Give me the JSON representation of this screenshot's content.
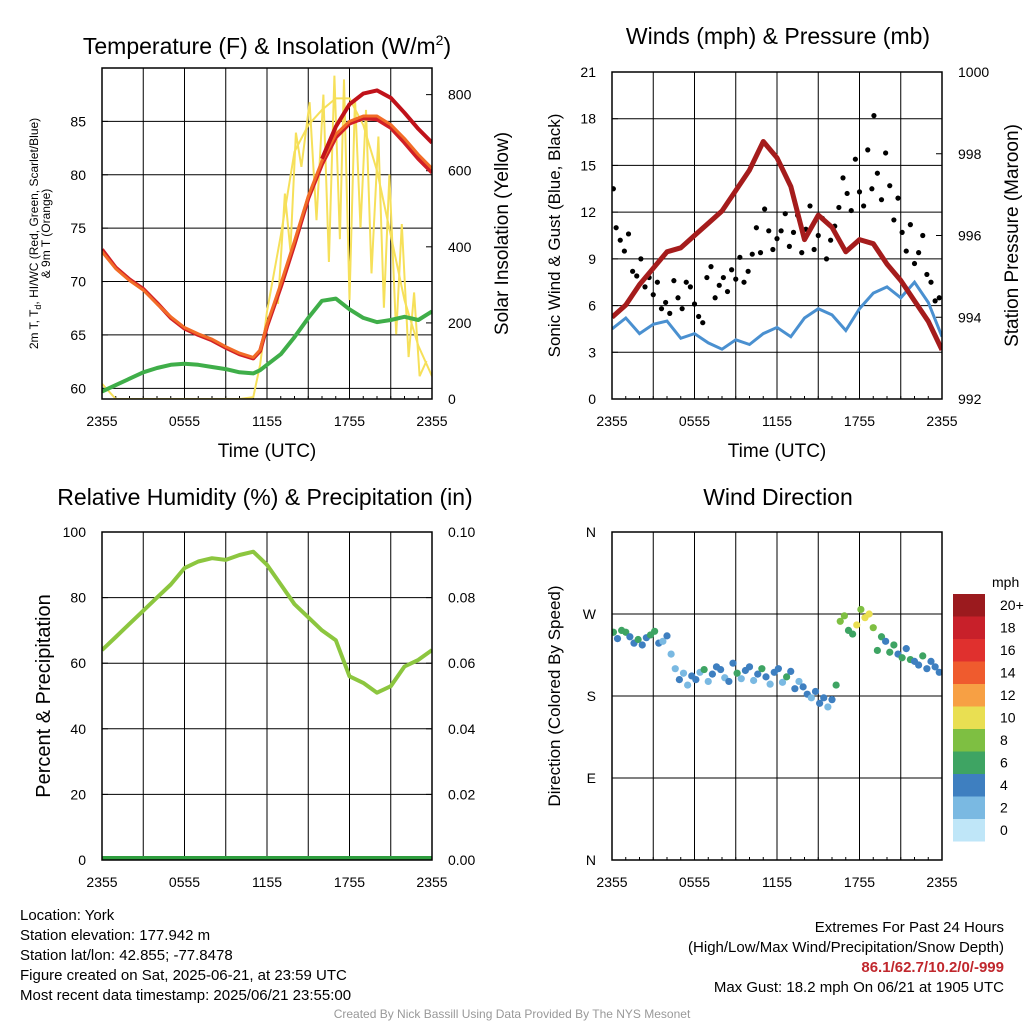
{
  "colors": {
    "t2m": "#d11f26",
    "td": "#3fae49",
    "hi": "#c0121a",
    "t9m": "#f26c27",
    "solar": "#f6e05a",
    "rh": "#8cc63f",
    "precip": "#2e9e3e",
    "gust": "#000000",
    "wind": "#4a90d0",
    "pressure": "#a51c1c",
    "ink": "#000000"
  },
  "chart_data": [
    {
      "id": "temperature",
      "type": "line",
      "title": "Temperature (F) & Insolation (W/m",
      "title_sup": "2",
      "title_close": ")",
      "xlabel": "Time (UTC)",
      "ylabel_lines": [
        "2m T, T",
        "d",
        ", HI/WC (Red, Green, Scarlet/Blue)",
        "& 9m T (Orange)"
      ],
      "y2label": "Solar Insolation (Yellow)",
      "x_ticks": [
        "2355",
        "0555",
        "1155",
        "1755",
        "2355"
      ],
      "ylim": [
        59,
        90
      ],
      "y_ticks": [
        60,
        65,
        70,
        75,
        80,
        85
      ],
      "y2lim": [
        0,
        870
      ],
      "y2_ticks": [
        0,
        200,
        400,
        600,
        800
      ],
      "x_hours": [
        0,
        1,
        2,
        3,
        4,
        5,
        6,
        7,
        8,
        9,
        10,
        11,
        11.5,
        12,
        13,
        14,
        15,
        16,
        17,
        18,
        19,
        20,
        21,
        22,
        23,
        24
      ],
      "series": [
        {
          "key": "t2m",
          "color_key": "t2m",
          "width": 4,
          "values": [
            73,
            71.3,
            70.2,
            69.3,
            68,
            66.6,
            65.6,
            65,
            64.5,
            63.8,
            63.2,
            62.8,
            63.5,
            65.8,
            69.5,
            73.5,
            77.8,
            81,
            83.5,
            84.8,
            85.3,
            85.2,
            84.4,
            83,
            81.5,
            80.2
          ]
        },
        {
          "key": "t9m",
          "color_key": "t9m",
          "width": 3,
          "values": [
            72.8,
            71.2,
            70.1,
            69.2,
            67.9,
            66.7,
            65.7,
            65.1,
            64.6,
            63.9,
            63.3,
            62.9,
            63.6,
            66.0,
            69.8,
            73.8,
            78.0,
            81.3,
            83.8,
            85.0,
            85.5,
            85.5,
            84.7,
            83.4,
            81.9,
            80.6
          ]
        },
        {
          "key": "hi",
          "color_key": "hi",
          "width": 4,
          "values": [
            null,
            null,
            null,
            null,
            null,
            null,
            null,
            null,
            null,
            null,
            null,
            null,
            null,
            null,
            null,
            null,
            null,
            81.5,
            84.5,
            86.6,
            87.6,
            87.9,
            87.2,
            85.8,
            84.3,
            83
          ]
        },
        {
          "key": "td",
          "color_key": "td",
          "width": 4,
          "values": [
            59.7,
            60.3,
            60.9,
            61.5,
            61.9,
            62.2,
            62.3,
            62.2,
            62.0,
            61.8,
            61.5,
            61.4,
            61.7,
            62.2,
            63.2,
            64.8,
            66.6,
            68.2,
            68.4,
            67.4,
            66.6,
            66.2,
            66.4,
            66.7,
            66.4,
            67.2
          ]
        },
        {
          "key": "solar",
          "axis": "y2",
          "color_key": "solar",
          "width": 2,
          "values": [
            40,
            0,
            0,
            0,
            0,
            0,
            0,
            0,
            0,
            0,
            0,
            5,
            90,
            230,
            430,
            650,
            720,
            760,
            790,
            790,
            720,
            600,
            430,
            260,
            140,
            60
          ]
        }
      ],
      "solar_extra": {
        "x": [
          12.8,
          13.3,
          13.7,
          14.1,
          14.5,
          15.1,
          15.6,
          16.1,
          16.5,
          16.9,
          17.3,
          17.6,
          18,
          18.4,
          18.8,
          19.2,
          19.6,
          20.1,
          20.5,
          20.9,
          21.4,
          21.8,
          22.3,
          22.7,
          23.1,
          23.6
        ],
        "v": [
          250,
          540,
          390,
          700,
          610,
          780,
          470,
          800,
          360,
          850,
          420,
          840,
          260,
          790,
          450,
          760,
          330,
          690,
          240,
          590,
          170,
          460,
          110,
          280,
          60,
          100
        ]
      }
    },
    {
      "id": "winds",
      "type": "line",
      "title": "Winds (mph) & Pressure (mb)",
      "xlabel": "Time (UTC)",
      "ylabel": "Sonic Wind & Gust (Blue, Black)",
      "y2label": "Station Pressure (Maroon)",
      "x_ticks": [
        "2355",
        "0555",
        "1155",
        "1755",
        "2355"
      ],
      "ylim": [
        0,
        21
      ],
      "y_ticks": [
        0,
        3,
        6,
        9,
        12,
        15,
        18,
        21
      ],
      "y2lim": [
        992,
        1000
      ],
      "y2_ticks": [
        992,
        994,
        996,
        998,
        1000
      ],
      "x_hours": [
        0,
        1,
        2,
        3,
        4,
        5,
        6,
        7,
        8,
        9,
        10,
        11,
        12,
        13,
        14,
        15,
        16,
        17,
        18,
        19,
        20,
        21,
        22,
        23,
        24
      ],
      "series": [
        {
          "key": "pressure",
          "axis": "y2",
          "color_key": "pressure",
          "width": 5,
          "values": [
            994.0,
            994.3,
            994.8,
            995.2,
            995.6,
            995.7,
            996.0,
            996.3,
            996.6,
            997.1,
            997.6,
            998.3,
            997.9,
            997.2,
            995.9,
            996.5,
            996.2,
            995.6,
            995.9,
            995.8,
            995.3,
            994.9,
            994.4,
            993.9,
            993.2
          ]
        },
        {
          "key": "wind",
          "color_key": "wind",
          "width": 3,
          "values": [
            4.5,
            5.2,
            4.2,
            4.8,
            5.0,
            3.9,
            4.2,
            3.6,
            3.2,
            3.8,
            3.5,
            4.2,
            4.6,
            4.0,
            5.2,
            5.8,
            5.4,
            4.4,
            5.8,
            6.8,
            7.2,
            6.5,
            7.5,
            6.2,
            4.0
          ]
        }
      ],
      "gust_points": {
        "x": [
          0.1,
          0.3,
          0.6,
          0.9,
          1.2,
          1.5,
          1.8,
          2.1,
          2.4,
          2.7,
          3.0,
          3.3,
          3.6,
          3.9,
          4.2,
          4.5,
          4.8,
          5.1,
          5.4,
          5.7,
          6.0,
          6.3,
          6.6,
          6.9,
          7.2,
          7.5,
          7.8,
          8.1,
          8.4,
          8.7,
          9.0,
          9.3,
          9.6,
          9.9,
          10.2,
          10.5,
          10.8,
          11.1,
          11.4,
          11.7,
          12.0,
          12.3,
          12.6,
          12.9,
          13.2,
          13.5,
          13.8,
          14.1,
          14.4,
          14.7,
          15.0,
          15.3,
          15.6,
          15.9,
          16.2,
          16.5,
          16.8,
          17.1,
          17.4,
          17.7,
          18.0,
          18.3,
          18.6,
          18.9,
          19.05,
          19.3,
          19.6,
          19.9,
          20.2,
          20.5,
          20.8,
          21.1,
          21.4,
          21.7,
          22.0,
          22.3,
          22.6,
          22.9,
          23.2,
          23.5,
          23.8
        ],
        "v": [
          13.5,
          11.0,
          10.2,
          9.5,
          10.6,
          8.2,
          7.9,
          9.0,
          7.2,
          7.8,
          6.7,
          7.5,
          5.8,
          6.2,
          5.5,
          7.6,
          6.5,
          5.8,
          7.5,
          7.2,
          6.1,
          5.3,
          4.9,
          7.8,
          8.5,
          6.5,
          7.3,
          7.8,
          6.9,
          8.3,
          7.7,
          9.1,
          7.5,
          8.2,
          9.3,
          11.0,
          9.4,
          12.2,
          10.8,
          9.6,
          10.3,
          10.8,
          11.9,
          9.8,
          10.7,
          11.8,
          9.4,
          10.9,
          12.4,
          9.6,
          10.5,
          11.6,
          9.0,
          10.2,
          11.1,
          12.3,
          14.2,
          13.2,
          12.1,
          15.4,
          13.3,
          12.4,
          16.0,
          13.5,
          18.2,
          14.5,
          12.8,
          15.8,
          13.7,
          11.5,
          12.9,
          10.7,
          9.5,
          11.2,
          8.7,
          9.4,
          10.5,
          8.0,
          7.5,
          6.3,
          6.5
        ]
      }
    },
    {
      "id": "humidity",
      "type": "line",
      "title": "Relative Humidity (%) & Precipitation (in)",
      "ylabel": "Percent & Precipitation",
      "x_ticks": [
        "2355",
        "0555",
        "1155",
        "1755",
        "2355"
      ],
      "ylim": [
        0,
        100
      ],
      "y_ticks": [
        0,
        20,
        40,
        60,
        80,
        100
      ],
      "y2lim": [
        0,
        0.1
      ],
      "y2_ticks": [
        "0.00",
        "0.02",
        "0.04",
        "0.06",
        "0.08",
        "0.10"
      ],
      "x_hours": [
        0,
        1,
        2,
        3,
        4,
        5,
        6,
        7,
        8,
        9,
        10,
        11,
        12,
        13,
        14,
        15,
        16,
        17,
        18,
        19,
        20,
        21,
        22,
        23,
        24
      ],
      "series": [
        {
          "key": "rh",
          "color_key": "rh",
          "width": 4,
          "values": [
            64,
            68,
            72,
            76,
            80,
            84,
            89,
            91,
            92,
            91.5,
            93,
            94,
            90,
            84,
            78,
            74,
            70,
            67,
            56,
            54,
            51,
            53,
            59,
            61,
            64
          ]
        },
        {
          "key": "precip",
          "axis": "y2",
          "color_key": "precip",
          "width": 8,
          "values": [
            0,
            0,
            0,
            0,
            0,
            0,
            0,
            0,
            0,
            0,
            0,
            0,
            0,
            0,
            0,
            0,
            0,
            0,
            0,
            0,
            0,
            0,
            0,
            0,
            0
          ]
        }
      ]
    },
    {
      "id": "wind_direction",
      "type": "scatter",
      "title": "Wind Direction",
      "ylabel": "Direction (Colored By Speed)",
      "x_ticks": [
        "2355",
        "0555",
        "1155",
        "1755",
        "2355"
      ],
      "ylim": [
        0,
        360
      ],
      "y_ticks": [
        "N",
        "E",
        "S",
        "W",
        "N"
      ],
      "y_tick_values": [
        0,
        90,
        180,
        270,
        360
      ],
      "colorbar": {
        "title": "mph",
        "labels": [
          "20+",
          "18",
          "16",
          "14",
          "12",
          "10",
          "8",
          "6",
          "4",
          "2",
          "0"
        ],
        "colors": [
          "#9b1a1e",
          "#c8202a",
          "#e0302e",
          "#ef5b2e",
          "#f7a044",
          "#e9df52",
          "#7ebf42",
          "#3ea463",
          "#3e7fc0",
          "#7ab9e2",
          "#bfe6f8"
        ]
      },
      "points": {
        "x": [
          0.1,
          0.4,
          0.7,
          1.0,
          1.3,
          1.6,
          1.9,
          2.2,
          2.5,
          2.8,
          3.1,
          3.4,
          3.7,
          4.0,
          4.3,
          4.6,
          4.9,
          5.2,
          5.5,
          5.8,
          6.1,
          6.4,
          6.7,
          7.0,
          7.3,
          7.6,
          7.9,
          8.2,
          8.5,
          8.8,
          9.1,
          9.4,
          9.7,
          10.0,
          10.3,
          10.6,
          10.9,
          11.2,
          11.5,
          11.8,
          12.1,
          12.4,
          12.7,
          13.0,
          13.3,
          13.6,
          13.9,
          14.2,
          14.5,
          14.8,
          15.1,
          15.4,
          15.7,
          16.0,
          16.3,
          16.6,
          16.9,
          17.2,
          17.5,
          17.8,
          18.1,
          18.4,
          18.7,
          19.0,
          19.3,
          19.6,
          19.9,
          20.2,
          20.5,
          20.8,
          21.1,
          21.4,
          21.7,
          22.0,
          22.3,
          22.6,
          22.9,
          23.2,
          23.5,
          23.8
        ],
        "dir": [
          250,
          243,
          252,
          250,
          245,
          238,
          242,
          236,
          244,
          247,
          251,
          238,
          240,
          246,
          226,
          210,
          198,
          205,
          192,
          202,
          198,
          206,
          209,
          196,
          204,
          212,
          209,
          200,
          196,
          216,
          205,
          199,
          208,
          212,
          197,
          204,
          210,
          201,
          193,
          206,
          210,
          195,
          201,
          207,
          188,
          196,
          190,
          182,
          178,
          185,
          172,
          178,
          168,
          176,
          192,
          262,
          268,
          252,
          248,
          258,
          275,
          266,
          270,
          255,
          230,
          245,
          240,
          228,
          236,
          226,
          222,
          232,
          220,
          218,
          214,
          224,
          210,
          218,
          212,
          206
        ],
        "spd": [
          6,
          5,
          7,
          6,
          5,
          4,
          6,
          4,
          5,
          6,
          7,
          4,
          3,
          5,
          3,
          3,
          4,
          3,
          2,
          4,
          5,
          3,
          6,
          3,
          4,
          5,
          4,
          3,
          5,
          4,
          6,
          3,
          4,
          5,
          3,
          4,
          6,
          4,
          3,
          5,
          4,
          3,
          6,
          4,
          5,
          3,
          4,
          5,
          3,
          4,
          4,
          5,
          3,
          4,
          6,
          8,
          9,
          7,
          6,
          10,
          9,
          11,
          10,
          8,
          6,
          7,
          5,
          6,
          7,
          5,
          6,
          4,
          6,
          5,
          4,
          6,
          5,
          4,
          5,
          4
        ]
      }
    }
  ],
  "info": {
    "location": "Location: York",
    "elevation": "Station elevation: 177.942 m",
    "latlon": "Station lat/lon: 42.855; -77.8478",
    "created": "Figure created on Sat, 2025-06-21, at 23:59 UTC",
    "recent": "Most recent data timestamp: 2025/06/21 23:55:00"
  },
  "extremes": {
    "title": "Extremes For Past 24 Hours",
    "subtitle": "(High/Low/Max Wind/Precipitation/Snow Depth)",
    "values": "86.1/62.7/10.2/0/-999",
    "max_gust": "Max Gust: 18.2 mph On 06/21 at 1905 UTC"
  },
  "credit": "Created By Nick Bassill Using Data Provided By The NYS Mesonet"
}
